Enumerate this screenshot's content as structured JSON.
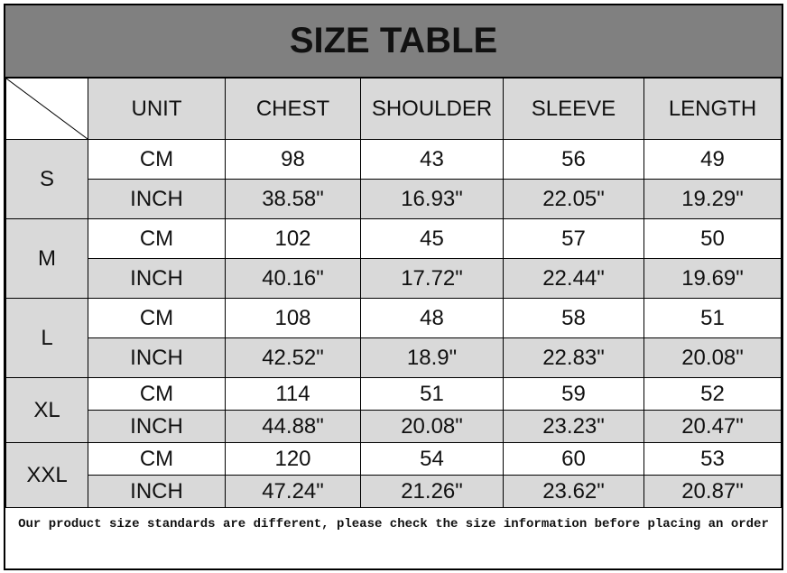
{
  "title": "SIZE TABLE",
  "columns": [
    "UNIT",
    "CHEST",
    "SHOULDER",
    "SLEEVE",
    "LENGTH"
  ],
  "sizes": [
    {
      "size": "S",
      "rows": [
        {
          "unit": "CM",
          "values": [
            "98",
            "43",
            "56",
            "49"
          ]
        },
        {
          "unit": "INCH",
          "values": [
            "38.58\"",
            "16.93\"",
            "22.05\"",
            "19.29\""
          ]
        }
      ]
    },
    {
      "size": "M",
      "rows": [
        {
          "unit": "CM",
          "values": [
            "102",
            "45",
            "57",
            "50"
          ]
        },
        {
          "unit": "INCH",
          "values": [
            "40.16\"",
            "17.72\"",
            "22.44\"",
            "19.69\""
          ]
        }
      ]
    },
    {
      "size": "L",
      "rows": [
        {
          "unit": "CM",
          "values": [
            "108",
            "48",
            "58",
            "51"
          ]
        },
        {
          "unit": "INCH",
          "values": [
            "42.52\"",
            "18.9\"",
            "22.83\"",
            "20.08\""
          ]
        }
      ]
    },
    {
      "size": "XL",
      "rows": [
        {
          "unit": "CM",
          "values": [
            "114",
            "51",
            "59",
            "52"
          ]
        },
        {
          "unit": "INCH",
          "values": [
            "44.88\"",
            "20.08\"",
            "23.23\"",
            "20.47\""
          ]
        }
      ]
    },
    {
      "size": "XXL",
      "rows": [
        {
          "unit": "CM",
          "values": [
            "120",
            "54",
            "60",
            "53"
          ]
        },
        {
          "unit": "INCH",
          "values": [
            "47.24\"",
            "21.26\"",
            "23.62\"",
            "20.87\""
          ]
        }
      ]
    }
  ],
  "footer": "Our product size standards are different, please check the size information before placing an order",
  "colors": {
    "title_bg": "#808080",
    "cell_grey": "#d9d9d9"
  }
}
